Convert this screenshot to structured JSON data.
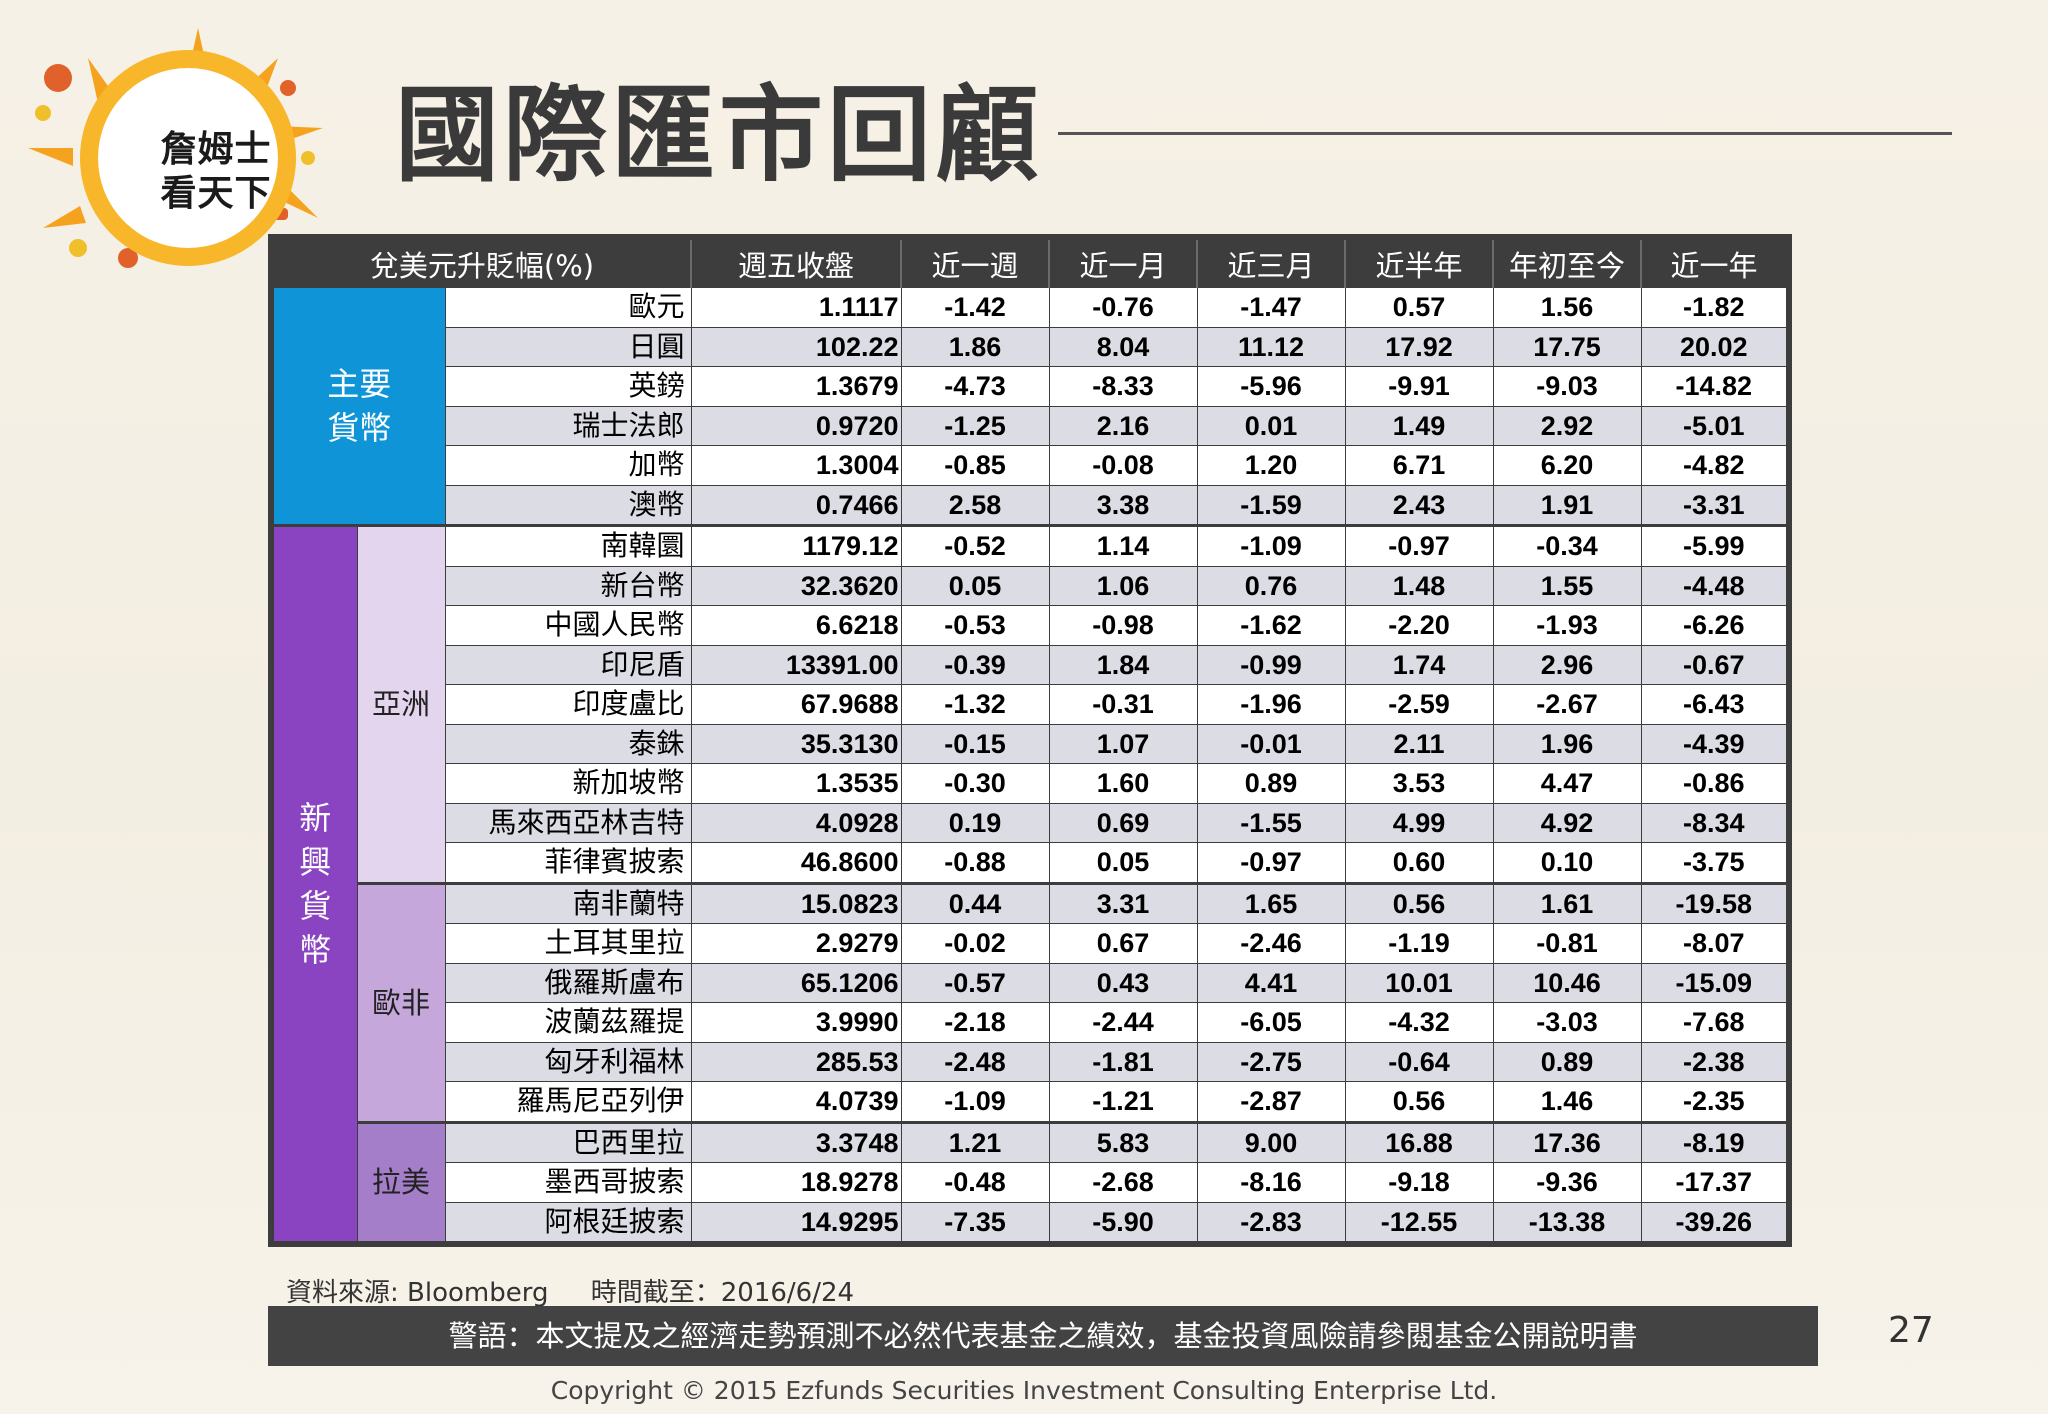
{
  "logo": {
    "line1": "詹姆士",
    "line2": "看天下"
  },
  "title": "國際匯市回顧",
  "table": {
    "header_label": "兌美元升貶幅(%)",
    "columns": [
      "週五收盤",
      "近一週",
      "近一月",
      "近三月",
      "近半年",
      "年初至今",
      "近一年"
    ],
    "major_label": "主要\n貨幣",
    "emerging_label": "新\n興\n貨\n幣",
    "sub_asia": "亞洲",
    "sub_euaf": "歐非",
    "sub_latam": "拉美",
    "major_rows": [
      {
        "name": "歐元",
        "values": [
          "1.1117",
          "-1.42",
          "-0.76",
          "-1.47",
          "0.57",
          "1.56",
          "-1.82"
        ]
      },
      {
        "name": "日圓",
        "values": [
          "102.22",
          "1.86",
          "8.04",
          "11.12",
          "17.92",
          "17.75",
          "20.02"
        ]
      },
      {
        "name": "英鎊",
        "values": [
          "1.3679",
          "-4.73",
          "-8.33",
          "-5.96",
          "-9.91",
          "-9.03",
          "-14.82"
        ]
      },
      {
        "name": "瑞士法郎",
        "values": [
          "0.9720",
          "-1.25",
          "2.16",
          "0.01",
          "1.49",
          "2.92",
          "-5.01"
        ]
      },
      {
        "name": "加幣",
        "values": [
          "1.3004",
          "-0.85",
          "-0.08",
          "1.20",
          "6.71",
          "6.20",
          "-4.82"
        ]
      },
      {
        "name": "澳幣",
        "values": [
          "0.7466",
          "2.58",
          "3.38",
          "-1.59",
          "2.43",
          "1.91",
          "-3.31"
        ]
      }
    ],
    "asia_rows": [
      {
        "name": "南韓圜",
        "values": [
          "1179.12",
          "-0.52",
          "1.14",
          "-1.09",
          "-0.97",
          "-0.34",
          "-5.99"
        ]
      },
      {
        "name": "新台幣",
        "values": [
          "32.3620",
          "0.05",
          "1.06",
          "0.76",
          "1.48",
          "1.55",
          "-4.48"
        ]
      },
      {
        "name": "中國人民幣",
        "values": [
          "6.6218",
          "-0.53",
          "-0.98",
          "-1.62",
          "-2.20",
          "-1.93",
          "-6.26"
        ]
      },
      {
        "name": "印尼盾",
        "values": [
          "13391.00",
          "-0.39",
          "1.84",
          "-0.99",
          "1.74",
          "2.96",
          "-0.67"
        ]
      },
      {
        "name": "印度盧比",
        "values": [
          "67.9688",
          "-1.32",
          "-0.31",
          "-1.96",
          "-2.59",
          "-2.67",
          "-6.43"
        ]
      },
      {
        "name": "泰銖",
        "values": [
          "35.3130",
          "-0.15",
          "1.07",
          "-0.01",
          "2.11",
          "1.96",
          "-4.39"
        ]
      },
      {
        "name": "新加坡幣",
        "values": [
          "1.3535",
          "-0.30",
          "1.60",
          "0.89",
          "3.53",
          "4.47",
          "-0.86"
        ]
      },
      {
        "name": "馬來西亞林吉特",
        "values": [
          "4.0928",
          "0.19",
          "0.69",
          "-1.55",
          "4.99",
          "4.92",
          "-8.34"
        ]
      },
      {
        "name": "菲律賓披索",
        "values": [
          "46.8600",
          "-0.88",
          "0.05",
          "-0.97",
          "0.60",
          "0.10",
          "-3.75"
        ]
      }
    ],
    "euaf_rows": [
      {
        "name": "南非蘭特",
        "values": [
          "15.0823",
          "0.44",
          "3.31",
          "1.65",
          "0.56",
          "1.61",
          "-19.58"
        ]
      },
      {
        "name": "土耳其里拉",
        "values": [
          "2.9279",
          "-0.02",
          "0.67",
          "-2.46",
          "-1.19",
          "-0.81",
          "-8.07"
        ]
      },
      {
        "name": "俄羅斯盧布",
        "values": [
          "65.1206",
          "-0.57",
          "0.43",
          "4.41",
          "10.01",
          "10.46",
          "-15.09"
        ]
      },
      {
        "name": "波蘭茲羅提",
        "values": [
          "3.9990",
          "-2.18",
          "-2.44",
          "-6.05",
          "-4.32",
          "-3.03",
          "-7.68"
        ]
      },
      {
        "name": "匈牙利福林",
        "values": [
          "285.53",
          "-2.48",
          "-1.81",
          "-2.75",
          "-0.64",
          "0.89",
          "-2.38"
        ]
      },
      {
        "name": "羅馬尼亞列伊",
        "values": [
          "4.0739",
          "-1.09",
          "-1.21",
          "-2.87",
          "0.56",
          "1.46",
          "-2.35"
        ]
      }
    ],
    "latam_rows": [
      {
        "name": "巴西里拉",
        "values": [
          "3.3748",
          "1.21",
          "5.83",
          "9.00",
          "16.88",
          "17.36",
          "-8.19"
        ]
      },
      {
        "name": "墨西哥披索",
        "values": [
          "18.9278",
          "-0.48",
          "-2.68",
          "-8.16",
          "-9.18",
          "-9.36",
          "-17.37"
        ]
      },
      {
        "name": "阿根廷披索",
        "values": [
          "14.9295",
          "-7.35",
          "-5.90",
          "-2.83",
          "-12.55",
          "-13.38",
          "-39.26"
        ]
      }
    ]
  },
  "source": {
    "label": "資料來源: Bloomberg",
    "date": "時間截至：2016/6/24"
  },
  "warning": "警語：本文提及之經濟走勢預測不必然代表基金之績效，基金投資風險請參閱基金公開說明書",
  "page_number": "27",
  "copyright": "Copyright © 2015 Ezfunds Securities Investment Consulting Enterprise Ltd.",
  "colors": {
    "major_category": "#1094d8",
    "emerging_category": "#8a44c2",
    "asia_sub": "#e4d5ee",
    "euaf_sub": "#c6a7dc",
    "latam_sub": "#a57ec9",
    "header_bg": "#3d3d3d"
  }
}
